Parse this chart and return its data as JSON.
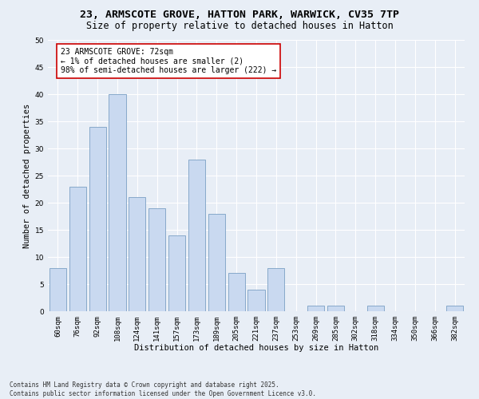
{
  "title1": "23, ARMSCOTE GROVE, HATTON PARK, WARWICK, CV35 7TP",
  "title2": "Size of property relative to detached houses in Hatton",
  "xlabel": "Distribution of detached houses by size in Hatton",
  "ylabel": "Number of detached properties",
  "categories": [
    "60sqm",
    "76sqm",
    "92sqm",
    "108sqm",
    "124sqm",
    "141sqm",
    "157sqm",
    "173sqm",
    "189sqm",
    "205sqm",
    "221sqm",
    "237sqm",
    "253sqm",
    "269sqm",
    "285sqm",
    "302sqm",
    "318sqm",
    "334sqm",
    "350sqm",
    "366sqm",
    "382sqm"
  ],
  "values": [
    8,
    23,
    34,
    40,
    21,
    19,
    14,
    28,
    18,
    7,
    4,
    8,
    0,
    1,
    1,
    0,
    1,
    0,
    0,
    0,
    1
  ],
  "bar_color": "#c9d9f0",
  "bar_edge_color": "#7a9fc4",
  "annotation_text": "23 ARMSCOTE GROVE: 72sqm\n← 1% of detached houses are smaller (2)\n98% of semi-detached houses are larger (222) →",
  "annotation_box_color": "#ffffff",
  "annotation_box_edge": "#cc0000",
  "ylim": [
    0,
    50
  ],
  "yticks": [
    0,
    5,
    10,
    15,
    20,
    25,
    30,
    35,
    40,
    45,
    50
  ],
  "background_color": "#e8eef6",
  "grid_color": "#ffffff",
  "footer": "Contains HM Land Registry data © Crown copyright and database right 2025.\nContains public sector information licensed under the Open Government Licence v3.0.",
  "title_fontsize": 9.5,
  "subtitle_fontsize": 8.5,
  "axis_label_fontsize": 7.5,
  "tick_fontsize": 6.5,
  "annotation_fontsize": 7,
  "footer_fontsize": 5.5
}
